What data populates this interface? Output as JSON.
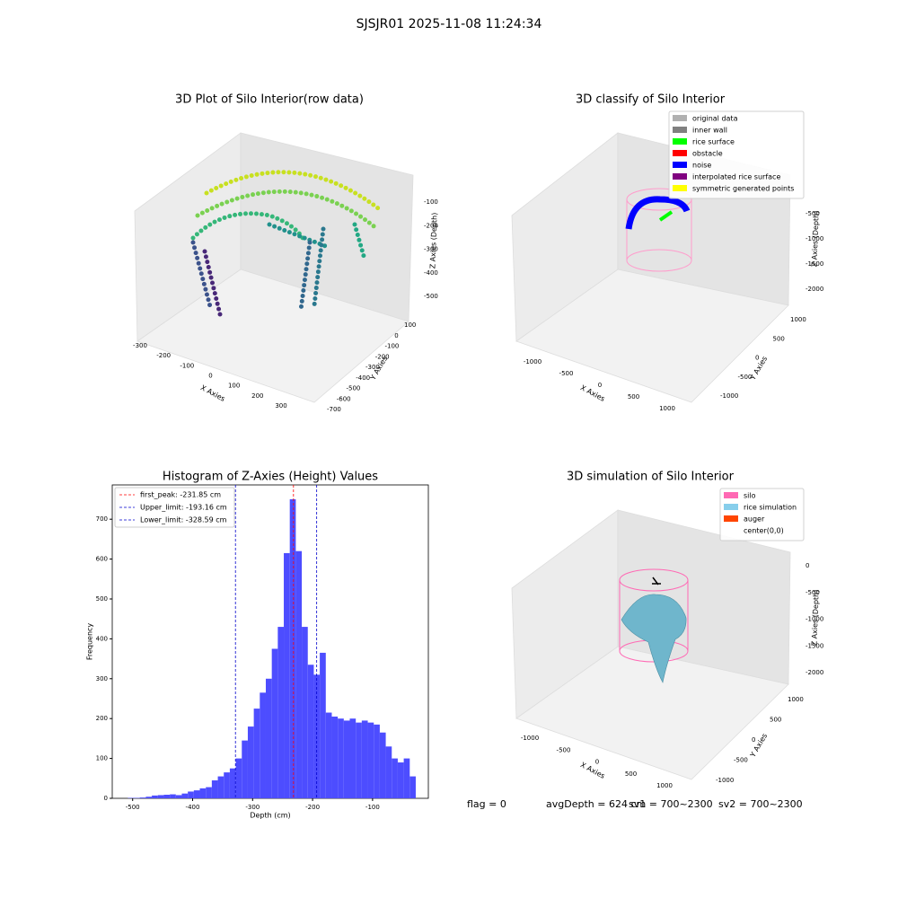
{
  "suptitle": "SJSJR01 2025-11-08 11:24:34",
  "chart_data": [
    {
      "type": "scatter3d",
      "title": "3D Plot of Silo Interior(row data)",
      "xlabel": "X Axies",
      "ylabel": "Y Axies",
      "zlabel": "Z Axies (Depth)",
      "xticks": [
        -300,
        -200,
        -100,
        0,
        100,
        200,
        300
      ],
      "yticks": [
        100,
        0,
        -100,
        -200,
        -300,
        -400,
        -500,
        -600,
        -700
      ],
      "zticks": [
        -100,
        -200,
        -300,
        -400,
        -500
      ]
    },
    {
      "type": "scatter3d",
      "title": "3D classify of Silo Interior",
      "xlabel": "X Axies",
      "ylabel": "Y Axies",
      "zlabel": "Z Axies (Depth)",
      "xticks": [
        -1000,
        -500,
        0,
        500,
        1000
      ],
      "yticks": [
        1000,
        500,
        0,
        -500,
        -1000
      ],
      "zticks": [
        -500,
        -1000,
        -1500,
        -2000
      ],
      "legend": [
        {
          "name": "original data",
          "color": "#b0b0b0"
        },
        {
          "name": "inner wall",
          "color": "#808080"
        },
        {
          "name": "rice surface",
          "color": "#00ff00"
        },
        {
          "name": "obstacle",
          "color": "#ff0000"
        },
        {
          "name": "noise",
          "color": "#0000ff"
        },
        {
          "name": "interpolated rice surface",
          "color": "#800080"
        },
        {
          "name": "symmetric generated points",
          "color": "#ffff00"
        }
      ]
    },
    {
      "type": "histogram",
      "title": "Histogram of Z-Axies (Height) Values",
      "xlabel": "Depth (cm)",
      "ylabel": "Frequency",
      "color": "#4d4dff",
      "bins": [
        -508,
        -498,
        -488,
        -478,
        -468,
        -458,
        -448,
        -438,
        -428,
        -418,
        -408,
        -398,
        -388,
        -378,
        -368,
        -358,
        -348,
        -338,
        -328,
        -318,
        -308,
        -298,
        -288,
        -278,
        -268,
        -258,
        -248,
        -238,
        -228,
        -218,
        -208,
        -198,
        -188,
        -178,
        -168,
        -158,
        -148,
        -138,
        -128,
        -118,
        -108,
        -98,
        -88,
        -78,
        -68,
        -58,
        -48,
        -38,
        -28
      ],
      "values": [
        1,
        1,
        2,
        4,
        7,
        8,
        9,
        10,
        8,
        12,
        17,
        20,
        25,
        28,
        45,
        55,
        65,
        75,
        100,
        145,
        180,
        225,
        265,
        300,
        375,
        430,
        615,
        750,
        620,
        430,
        335,
        310,
        365,
        215,
        205,
        200,
        195,
        200,
        190,
        195,
        190,
        185,
        165,
        130,
        100,
        90,
        100,
        55
      ],
      "xlim": [
        -534,
        -7
      ],
      "ylim": [
        0,
        786
      ],
      "xticks": [
        -500,
        -400,
        -300,
        -200,
        -100
      ],
      "yticks": [
        0,
        100,
        200,
        300,
        400,
        500,
        600,
        700
      ],
      "vlines": [
        {
          "label": "first_peak: -231.85 cm",
          "value": -231.85,
          "color": "#ff0000"
        },
        {
          "label": "Upper_limit: -193.16 cm",
          "value": -193.16,
          "color": "#0000cc"
        },
        {
          "label": "Lower_limit: -328.59 cm",
          "value": -328.59,
          "color": "#0000cc"
        }
      ]
    },
    {
      "type": "surface3d",
      "title": "3D simulation of Silo Interior",
      "xlabel": "X Axies",
      "ylabel": "Y Axies",
      "zlabel": "Z Axies (Depth)",
      "xticks": [
        -1000,
        -500,
        0,
        500,
        1000
      ],
      "yticks": [
        1000,
        500,
        0,
        -500,
        -1000
      ],
      "zticks": [
        0,
        -500,
        -1000,
        -1500,
        -2000
      ],
      "legend": [
        {
          "name": "silo",
          "color": "#ff69b4"
        },
        {
          "name": "rice simulation",
          "color": "#87ceeb"
        },
        {
          "name": "auger",
          "color": "#ff4500"
        },
        {
          "name": "center(0,0)",
          "color": "#ffffff"
        }
      ]
    }
  ],
  "footer": [
    "flag = 0",
    "avgDepth = 624 cm",
    "sv1 = 700~2300",
    "sv2 = 700~2300"
  ]
}
